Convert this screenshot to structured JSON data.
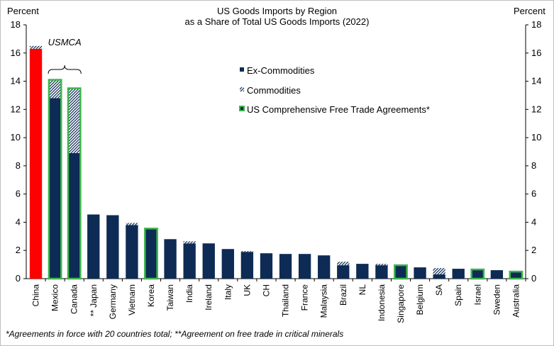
{
  "chart_data": {
    "type": "bar",
    "title": "US Goods Imports by Region",
    "subtitle": "as a Share of Total US Goods Imports (2022)",
    "ylabel_left": "Percent",
    "ylabel_right": "Percent",
    "ylim": [
      0,
      18
    ],
    "yticks": [
      0,
      2,
      4,
      6,
      8,
      10,
      12,
      14,
      16,
      18
    ],
    "categories": [
      "China",
      "Mexico",
      "Canada",
      "** Japan",
      "Germany",
      "Vietnam",
      "Korea",
      "Taiwan",
      "India",
      "Ireland",
      "Italy",
      "UK",
      "CH",
      "Thailand",
      "France",
      "Malaysia",
      "Brazil",
      "NL",
      "Indonesia",
      "Singapore",
      "Belgium",
      "SA",
      "Spain",
      "Israel",
      "Sweden",
      "Australia"
    ],
    "series": [
      {
        "name": "Ex-Commodities",
        "color": "#0d2b54",
        "values": [
          16.3,
          12.8,
          8.9,
          4.55,
          4.5,
          3.8,
          3.55,
          2.8,
          2.5,
          2.5,
          2.1,
          1.9,
          1.8,
          1.75,
          1.75,
          1.65,
          0.95,
          1.05,
          0.95,
          0.95,
          0.8,
          0.3,
          0.7,
          0.65,
          0.6,
          0.45
        ]
      },
      {
        "name": "Commodities",
        "color": "#0d2b54",
        "pattern": "diagonal-hatch",
        "values": [
          0.2,
          1.3,
          4.6,
          0.0,
          0.0,
          0.15,
          0.0,
          0.0,
          0.15,
          0.0,
          0.0,
          0.05,
          0.0,
          0.0,
          0.0,
          0.0,
          0.25,
          0.0,
          0.1,
          0.0,
          0.0,
          0.45,
          0.0,
          0.0,
          0.0,
          0.05
        ]
      }
    ],
    "fta_categories": [
      "Mexico",
      "Canada",
      "Korea",
      "Singapore",
      "Israel",
      "Australia"
    ],
    "fta_outline_color": "#3cb54a",
    "highlight": {
      "category": "China",
      "color": "#ff0000"
    },
    "annotations": [
      {
        "text": "USMCA",
        "spans": [
          "Mexico",
          "Canada"
        ]
      }
    ],
    "legend": [
      {
        "label": "Ex-Commodities",
        "marker": "solid"
      },
      {
        "label": "Commodities",
        "marker": "hatch"
      },
      {
        "label": "US Comprehensive Free Trade Agreements*",
        "marker": "green-outline"
      }
    ],
    "legend_position": "top-center",
    "grid": false,
    "footnote": "*Agreements in force with 20 countries total; **Agreement on free trade in critical minerals"
  }
}
